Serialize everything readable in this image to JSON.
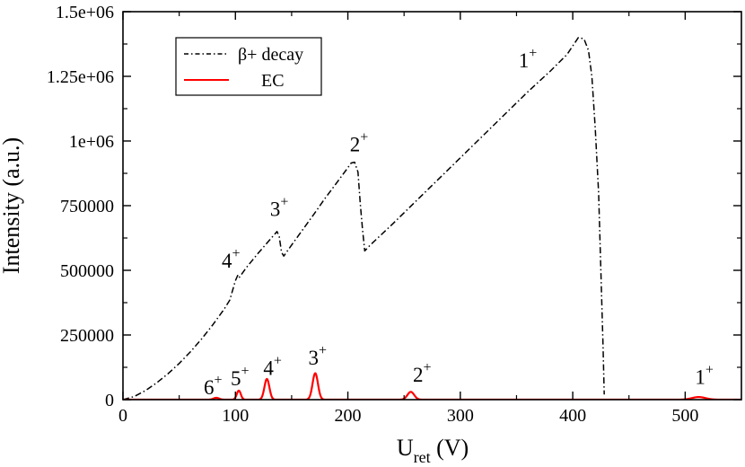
{
  "chart_data": {
    "type": "line",
    "title": "",
    "xlabel": {
      "main": "U",
      "sub": "ret",
      "unit": "(V)"
    },
    "ylabel": "Intensity (a.u.)",
    "xlim": [
      0,
      550
    ],
    "ylim": [
      0,
      1500000
    ],
    "grid": false,
    "legend_position": "top-left",
    "x_ticks": [
      {
        "value": 0,
        "label": "0"
      },
      {
        "value": 100,
        "label": "100"
      },
      {
        "value": 200,
        "label": "200"
      },
      {
        "value": 300,
        "label": "300"
      },
      {
        "value": 400,
        "label": "400"
      },
      {
        "value": 500,
        "label": "500"
      }
    ],
    "y_ticks": [
      {
        "value": 0,
        "label": "0"
      },
      {
        "value": 250000,
        "label": "250000"
      },
      {
        "value": 500000,
        "label": "500000"
      },
      {
        "value": 750000,
        "label": "750000"
      },
      {
        "value": 1000000,
        "label": "1e+06"
      },
      {
        "value": 1250000,
        "label": "1.25e+06"
      },
      {
        "value": 1500000,
        "label": "1.5e+06"
      }
    ],
    "series": [
      {
        "name": "β+ decay",
        "color": "#000000",
        "style": "dash-dot",
        "points": [
          [
            0,
            0
          ],
          [
            10,
            12000
          ],
          [
            20,
            35000
          ],
          [
            30,
            65000
          ],
          [
            40,
            100000
          ],
          [
            50,
            140000
          ],
          [
            60,
            185000
          ],
          [
            70,
            235000
          ],
          [
            80,
            290000
          ],
          [
            90,
            350000
          ],
          [
            95,
            385000
          ],
          [
            100,
            460000
          ],
          [
            102,
            480000
          ],
          [
            103,
            470000
          ],
          [
            105,
            482000
          ],
          [
            110,
            512000
          ],
          [
            120,
            565000
          ],
          [
            130,
            615000
          ],
          [
            137,
            650000
          ],
          [
            139,
            630000
          ],
          [
            141,
            570000
          ],
          [
            143,
            555000
          ],
          [
            150,
            598000
          ],
          [
            160,
            658000
          ],
          [
            170,
            718000
          ],
          [
            180,
            780000
          ],
          [
            190,
            838000
          ],
          [
            198,
            885000
          ],
          [
            203,
            915000
          ],
          [
            206,
            918000
          ],
          [
            209,
            880000
          ],
          [
            211,
            760000
          ],
          [
            213,
            660000
          ],
          [
            215,
            575000
          ],
          [
            220,
            598000
          ],
          [
            240,
            680000
          ],
          [
            260,
            765000
          ],
          [
            280,
            850000
          ],
          [
            300,
            935000
          ],
          [
            320,
            1020000
          ],
          [
            340,
            1105000
          ],
          [
            360,
            1190000
          ],
          [
            380,
            1270000
          ],
          [
            395,
            1335000
          ],
          [
            405,
            1400000
          ],
          [
            410,
            1395000
          ],
          [
            414,
            1350000
          ],
          [
            417,
            1250000
          ],
          [
            420,
            1050000
          ],
          [
            423,
            800000
          ],
          [
            425,
            500000
          ],
          [
            427,
            200000
          ],
          [
            428,
            20000
          ]
        ]
      },
      {
        "name": "EC",
        "color": "#ff0000",
        "style": "solid",
        "baseline_range": [
          0,
          550
        ],
        "peaks": [
          {
            "center": 83,
            "height": 7000,
            "width": 2.5
          },
          {
            "center": 103,
            "height": 35000,
            "width": 1.8
          },
          {
            "center": 128,
            "height": 80000,
            "width": 2.2
          },
          {
            "center": 171,
            "height": 102000,
            "width": 2.4
          },
          {
            "center": 256,
            "height": 30000,
            "width": 3.0
          },
          {
            "center": 512,
            "height": 10000,
            "width": 6.0
          }
        ]
      }
    ],
    "annotations": {
      "beta": [
        {
          "text": "4",
          "sup": "+",
          "x": 96,
          "y": 510000
        },
        {
          "text": "3",
          "sup": "+",
          "x": 139,
          "y": 710000
        },
        {
          "text": "2",
          "sup": "+",
          "x": 210,
          "y": 960000
        },
        {
          "text": "1",
          "sup": "+",
          "x": 360,
          "y": 1285000
        }
      ],
      "ec": [
        {
          "text": "6",
          "sup": "+",
          "x": 80,
          "y": 20000
        },
        {
          "text": "5",
          "sup": "+",
          "x": 104,
          "y": 55000
        },
        {
          "text": "4",
          "sup": "+",
          "x": 133,
          "y": 95000
        },
        {
          "text": "3",
          "sup": "+",
          "x": 173,
          "y": 135000
        },
        {
          "text": "2",
          "sup": "+",
          "x": 266,
          "y": 70000
        },
        {
          "text": "1",
          "sup": "+",
          "x": 517,
          "y": 60000
        }
      ]
    }
  }
}
